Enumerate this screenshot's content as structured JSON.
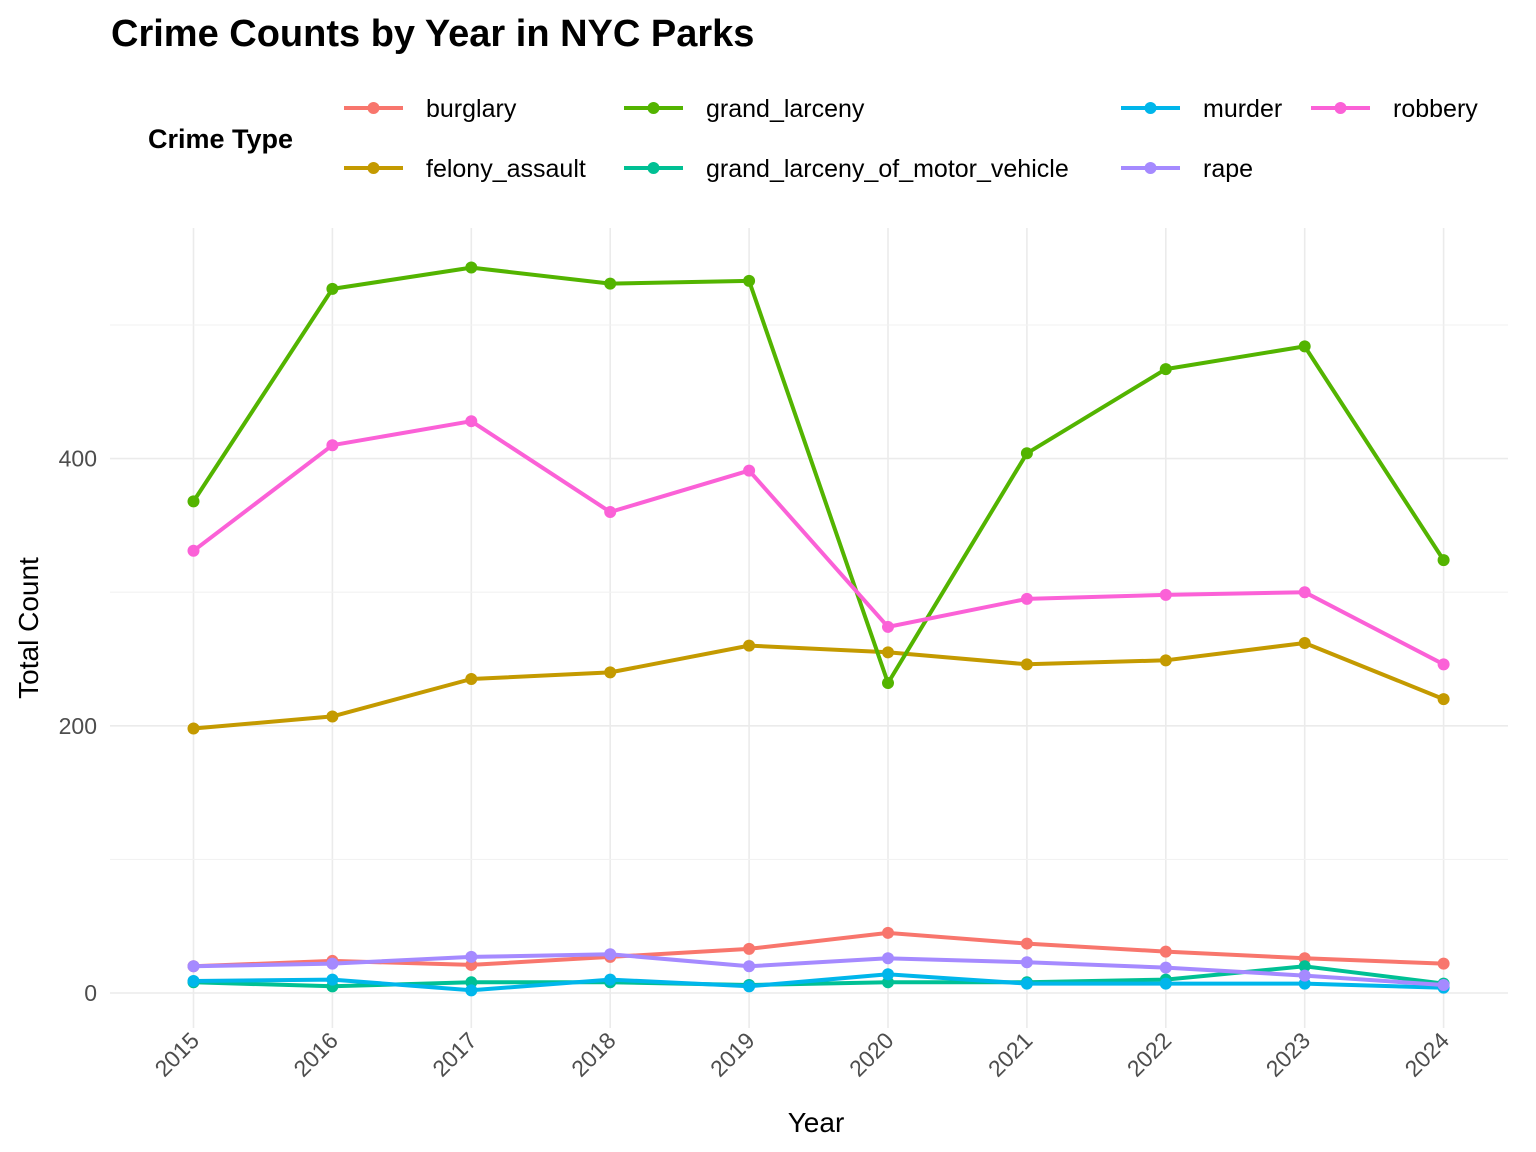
{
  "chart_data": {
    "type": "line",
    "title": "Crime Counts by Year in NYC Parks",
    "xlabel": "Year",
    "ylabel": "Total Count",
    "legend_title": "Crime Type",
    "legend_position": "top",
    "grid": true,
    "x": [
      2015,
      2016,
      2017,
      2018,
      2019,
      2020,
      2021,
      2022,
      2023,
      2024
    ],
    "x_tick_labels": [
      "2015",
      "2016",
      "2017",
      "2018",
      "2019",
      "2020",
      "2021",
      "2022",
      "2023",
      "2024"
    ],
    "y_ticks": [
      0,
      200,
      400
    ],
    "y_tick_labels": [
      "0",
      "200",
      "400"
    ],
    "ylim": [
      -30,
      570
    ],
    "series": [
      {
        "name": "burglary",
        "color": "#F8766D",
        "values": [
          20,
          24,
          21,
          27,
          33,
          45,
          37,
          31,
          26,
          22
        ]
      },
      {
        "name": "felony_assault",
        "color": "#C49A00",
        "values": [
          198,
          207,
          235,
          240,
          260,
          255,
          246,
          249,
          262,
          220
        ]
      },
      {
        "name": "grand_larceny",
        "color": "#53B400",
        "values": [
          368,
          527,
          543,
          531,
          533,
          232,
          404,
          467,
          484,
          324
        ]
      },
      {
        "name": "grand_larceny_of_motor_vehicle",
        "color": "#00C094",
        "values": [
          8,
          5,
          8,
          8,
          6,
          8,
          8,
          10,
          20,
          7
        ]
      },
      {
        "name": "murder",
        "color": "#00B6EB",
        "values": [
          9,
          10,
          2,
          10,
          5,
          14,
          7,
          7,
          7,
          4
        ]
      },
      {
        "name": "rape",
        "color": "#A58AFF",
        "values": [
          20,
          22,
          27,
          29,
          20,
          26,
          23,
          19,
          13,
          6
        ]
      },
      {
        "name": "robbery",
        "color": "#FB61D7",
        "values": [
          331,
          410,
          428,
          360,
          391,
          274,
          295,
          298,
          300,
          246
        ]
      }
    ]
  }
}
